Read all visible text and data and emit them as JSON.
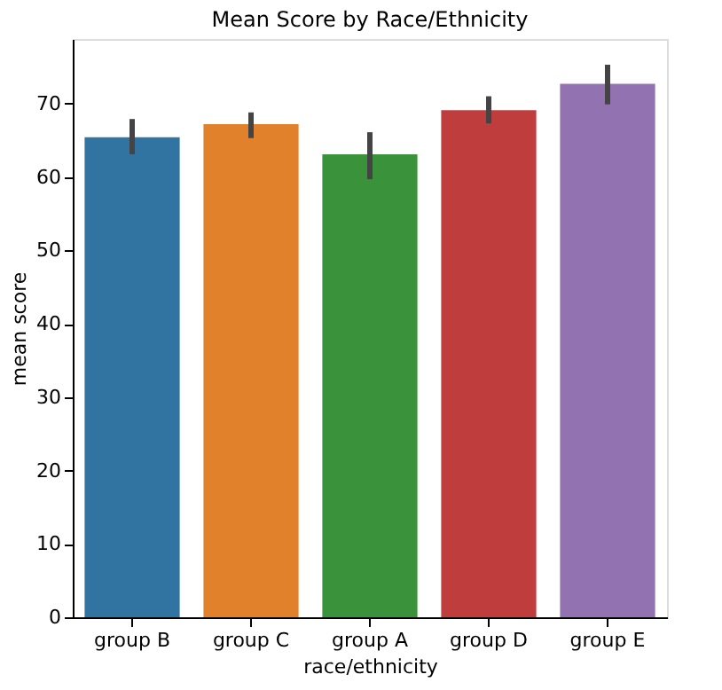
{
  "chart_data": {
    "type": "bar",
    "title": "Mean Score by Race/Ethnicity",
    "xlabel": "race/ethnicity",
    "ylabel": "mean score",
    "categories": [
      "group B",
      "group C",
      "group A",
      "group D",
      "group E"
    ],
    "values": [
      65.4,
      67.2,
      63.1,
      69.1,
      72.7
    ],
    "colors": [
      "#3274a1",
      "#e1812c",
      "#3a923a",
      "#c03d3e",
      "#9372b2"
    ],
    "errors": [
      [
        63.1,
        67.9
      ],
      [
        65.3,
        68.8
      ],
      [
        59.7,
        66.1
      ],
      [
        67.3,
        71.0
      ],
      [
        69.9,
        75.3
      ]
    ],
    "ylim": [
      0,
      78.8
    ],
    "yticks": [
      0,
      10,
      20,
      30,
      40,
      50,
      60,
      70
    ],
    "grid": false
  }
}
